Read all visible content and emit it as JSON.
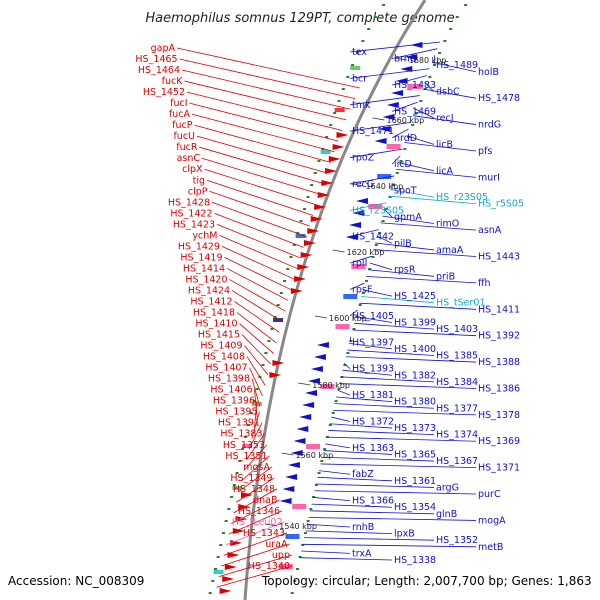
{
  "map": {
    "title": "Haemophilus somnus 129PT, complete genome",
    "accession": "Accession: NC_008309",
    "summary": "Topology: circular; Length: 2,007,700 bp; Genes: 1,863",
    "colors": {
      "left_genes": "#dd0000",
      "right_genes": "#1111cc",
      "trna": "#ee66aa",
      "rrna": "#11aacc",
      "backbone": "#888888",
      "tick_dots": "#228822"
    },
    "ticks": [
      {
        "label": "1680 kbp"
      },
      {
        "label": "1660 kbp"
      },
      {
        "label": "1640 kbp"
      },
      {
        "label": "1620 kbp"
      },
      {
        "label": "1600 kbp"
      },
      {
        "label": "1580 kbp"
      },
      {
        "label": "1560 kbp"
      },
      {
        "label": "1540 kbp"
      }
    ],
    "left_labels": [
      "gapA",
      "HS_1465",
      "HS_1464",
      "fucK",
      "HS_1452",
      "fucI",
      "fucA",
      "fucP",
      "fucU",
      "fucR",
      "asnC",
      "clpX",
      "tig",
      "clpP",
      "HS_1428",
      "HS_1422",
      "HS_1423",
      "ychM",
      "HS_1429",
      "HS_1419",
      "HS_1414",
      "HS_1420",
      "HS_1424",
      "HS_1412",
      "HS_1418",
      "HS_1410",
      "HS_1415",
      "HS_1409",
      "HS_1408",
      "HS_1407",
      "HS_1398",
      "HS_1406",
      "HS_1396",
      "HS_1395",
      "HS_1391",
      "HS_1383",
      "HS_1353",
      "HS_1351",
      "mgsA",
      "HS_1349",
      "HS_1348",
      "dnaB",
      "HS_1346",
      "HS_tLeu02",
      "HS_1343",
      "uraA",
      "upp",
      "HS_1340"
    ],
    "right_labels": [
      "tex",
      "brnQ",
      "HS_1489",
      "holB",
      "bcr",
      "HS_1483",
      "dsbC",
      "HS_1478",
      "tmk",
      "HS_1469",
      "recJ",
      "nrdG",
      "HS_1471",
      "nrdD",
      "licB",
      "pfs",
      "rpoZ",
      "licD",
      "licA",
      "murI",
      "recG",
      "spoT",
      "HS_r23S05",
      "HS_r5S05",
      "HS_r23S05",
      "gpmA",
      "rimO",
      "asnA",
      "HS_1442",
      "pilB",
      "amaA",
      "HS_1443",
      "rplI",
      "rpsR",
      "priB",
      "ffh",
      "rpsF",
      "HS_1425",
      "HS_tSer01",
      "HS_1411",
      "HS_1405",
      "HS_1399",
      "HS_1403",
      "HS_1392",
      "HS_1397",
      "HS_1400",
      "HS_1385",
      "HS_1388",
      "HS_1393",
      "HS_1382",
      "HS_1384",
      "HS_1386",
      "HS_1381",
      "HS_1380",
      "HS_1377",
      "HS_1378",
      "HS_1372",
      "HS_1373",
      "HS_1374",
      "HS_1369",
      "HS_1363",
      "HS_1365",
      "HS_1367",
      "HS_1371",
      "fabZ",
      "HS_1361",
      "argG",
      "purC",
      "HS_1366",
      "HS_1354",
      "glnB",
      "mogA",
      "rnhB",
      "lpxB",
      "HS_1352",
      "metB",
      "trxA",
      "HS_1338"
    ]
  }
}
